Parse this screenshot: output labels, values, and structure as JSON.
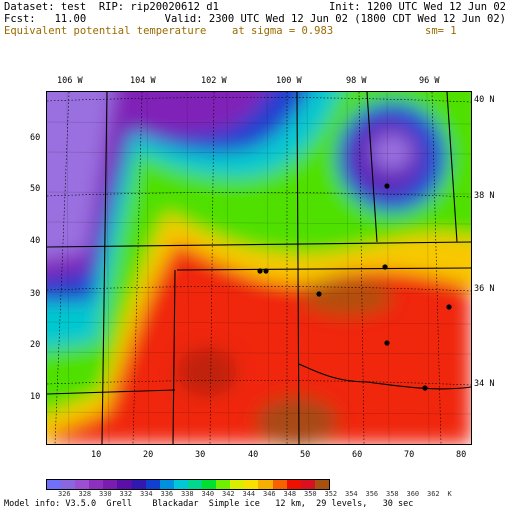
{
  "header": {
    "line1_left": "Dataset: test  RIP: rip20020612 d1",
    "line1_right": "Init: 1200 UTC Wed 12 Jun 02",
    "line2_left": "Fcst:   11.00",
    "line2_right": "Valid: 2300 UTC Wed 12 Jun 02 (1800 CDT Wed 12 Jun 02)",
    "line3_left": "Equivalent potential temperature",
    "line3_mid": "at sigma = 0.983",
    "line3_right": "sm= 1"
  },
  "longitude_labels": [
    "106 W",
    "104 W",
    "102 W",
    "100 W",
    "98 W",
    "96 W"
  ],
  "latitude_labels": [
    "40 N",
    "38 N",
    "36 N",
    "34 N"
  ],
  "grid_y_labels": [
    "60",
    "50",
    "40",
    "30",
    "20",
    "10"
  ],
  "grid_x_labels": [
    "10",
    "20",
    "30",
    "40",
    "50",
    "60",
    "70",
    "80"
  ],
  "colorbar": {
    "labels": [
      "326",
      "328",
      "330",
      "332",
      "334",
      "336",
      "338",
      "340",
      "342",
      "344",
      "346",
      "348",
      "350",
      "352",
      "354",
      "356",
      "358",
      "360",
      "362",
      "K"
    ],
    "colors": [
      "#7070f8",
      "#8a66e0",
      "#9c4fd2",
      "#8f2fc0",
      "#7a1cb0",
      "#5a10a8",
      "#3018b0",
      "#1040d0",
      "#0090e0",
      "#00c8d8",
      "#00d890",
      "#00e030",
      "#70f000",
      "#d8f000",
      "#f8e000",
      "#f8b000",
      "#f86000",
      "#f01000",
      "#d81020",
      "#a85010"
    ],
    "unit": "K"
  },
  "footer": "Model info: V3.5.0  Grell    Blackadar  Simple ice   12 km,  29 levels,   30 sec",
  "map": {
    "variable": "Equivalent potential temperature",
    "units": "K",
    "features": [
      "state boundaries",
      "county boundaries",
      "lat-lon grid",
      "station dots"
    ]
  }
}
